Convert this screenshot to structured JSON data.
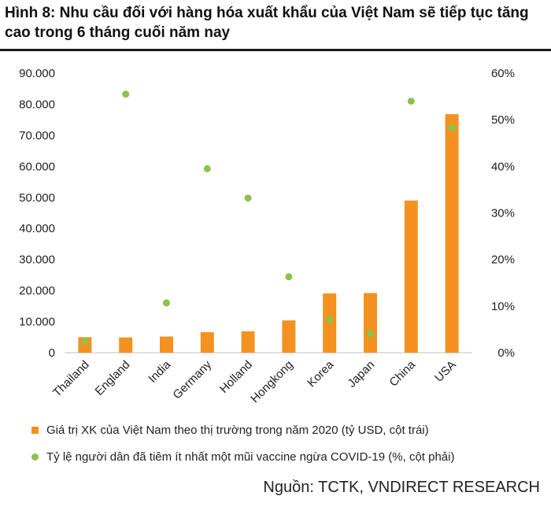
{
  "header": {
    "title": "Hình 8: Nhu cầu đối với hàng hóa xuất khẩu của Việt Nam sẽ tiếp tục tăng cao trong 6 tháng cuối năm nay"
  },
  "chart_data": {
    "type": "bar",
    "title": "Hình 8: Nhu cầu đối với hàng hóa xuất khẩu của Việt Nam sẽ tiếp tục tăng cao trong 6 tháng cuối năm nay",
    "categories": [
      "Thailand",
      "England",
      "India",
      "Germany",
      "Holland",
      "Hongkong",
      "Korea",
      "Japan",
      "China",
      "USA"
    ],
    "series": [
      {
        "name": "Giá trị XK của Việt Nam theo thị trường trong năm 2020 (tỷ USD, cột trái)",
        "type": "bar",
        "axis": "left",
        "color": "#F39220",
        "values": [
          5000,
          4900,
          5200,
          6600,
          6900,
          10400,
          19100,
          19200,
          49000,
          76800
        ]
      },
      {
        "name": "Tỷ lệ người dân đã tiêm ít nhất một mũi vaccine ngừa COVID-19 (%, cột phải)",
        "type": "scatter",
        "axis": "right",
        "color": "#8BC34A",
        "values": [
          2.5,
          55.5,
          10.7,
          39.5,
          33.2,
          16.3,
          7.1,
          4.1,
          54.0,
          48.3
        ]
      }
    ],
    "y_left": {
      "min": 0,
      "max": 90000,
      "ticks": [
        "0",
        "10.000",
        "20.000",
        "30.000",
        "40.000",
        "50.000",
        "60.000",
        "70.000",
        "80.000",
        "90.000"
      ]
    },
    "y_right": {
      "min": 0,
      "max": 60,
      "ticks": [
        "0%",
        "10%",
        "20%",
        "30%",
        "40%",
        "50%",
        "60%"
      ]
    },
    "grid": false,
    "legend_position": "bottom"
  },
  "legend": {
    "bar_label": "Giá trị XK của Việt Nam theo thị trường trong năm 2020 (tỷ USD, cột trái)",
    "dot_label": "Tỷ lệ người dân đã tiêm ít nhất một mũi vaccine ngừa COVID-19 (%, cột phải)"
  },
  "source": "Nguồn: TCTK, VNDIRECT RESEARCH"
}
